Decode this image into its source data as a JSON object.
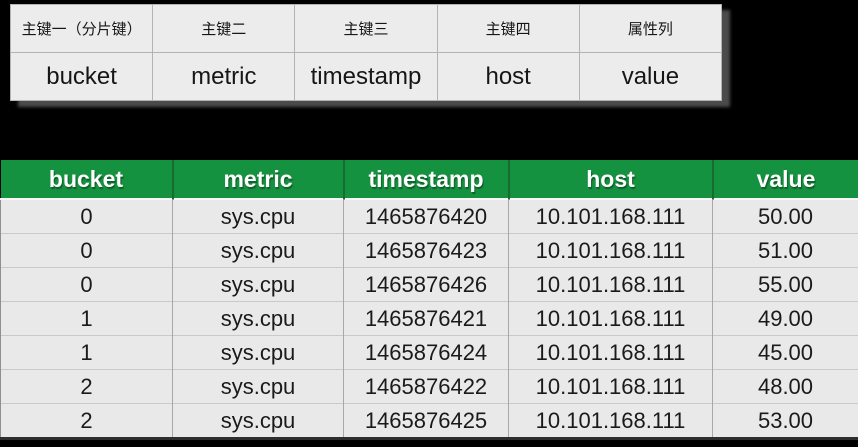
{
  "colors": {
    "page_background": "#000000",
    "data_header_bg": "#15923f",
    "data_header_text": "#ffffff",
    "row_bg": "#e9e9e9",
    "schema_bg": "#ececec"
  },
  "schema_table": {
    "headers": [
      "主键一（分片键）",
      "主键二",
      "主键三",
      "主键四",
      "属性列"
    ],
    "fields": [
      "bucket",
      "metric",
      "timestamp",
      "host",
      "value"
    ]
  },
  "data_table": {
    "columns": [
      "bucket",
      "metric",
      "timestamp",
      "host",
      "value"
    ],
    "rows": [
      [
        "0",
        "sys.cpu",
        "1465876420",
        "10.101.168.111",
        "50.00"
      ],
      [
        "0",
        "sys.cpu",
        "1465876423",
        "10.101.168.111",
        "51.00"
      ],
      [
        "0",
        "sys.cpu",
        "1465876426",
        "10.101.168.111",
        "55.00"
      ],
      [
        "1",
        "sys.cpu",
        "1465876421",
        "10.101.168.111",
        "49.00"
      ],
      [
        "1",
        "sys.cpu",
        "1465876424",
        "10.101.168.111",
        "45.00"
      ],
      [
        "2",
        "sys.cpu",
        "1465876422",
        "10.101.168.111",
        "48.00"
      ],
      [
        "2",
        "sys.cpu",
        "1465876425",
        "10.101.168.111",
        "53.00"
      ]
    ]
  }
}
